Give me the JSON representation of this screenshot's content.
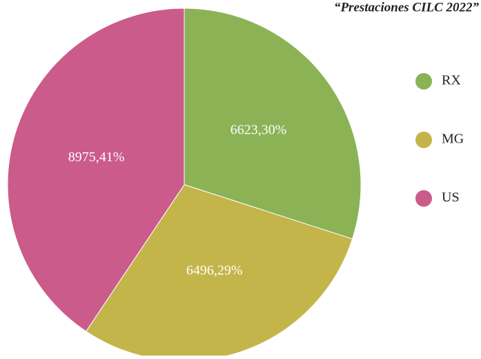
{
  "chart_data": {
    "type": "pie",
    "title": "“Prestaciones CILC 2022”",
    "categories": [
      "RX",
      "MG",
      "US"
    ],
    "values": [
      6623,
      6496,
      8975
    ],
    "value_labels": [
      "6623,30%",
      "6496,29%",
      "8975,41%"
    ],
    "colors": [
      "#8bb356",
      "#c4b54a",
      "#cb5b8b"
    ],
    "legend": "right"
  }
}
